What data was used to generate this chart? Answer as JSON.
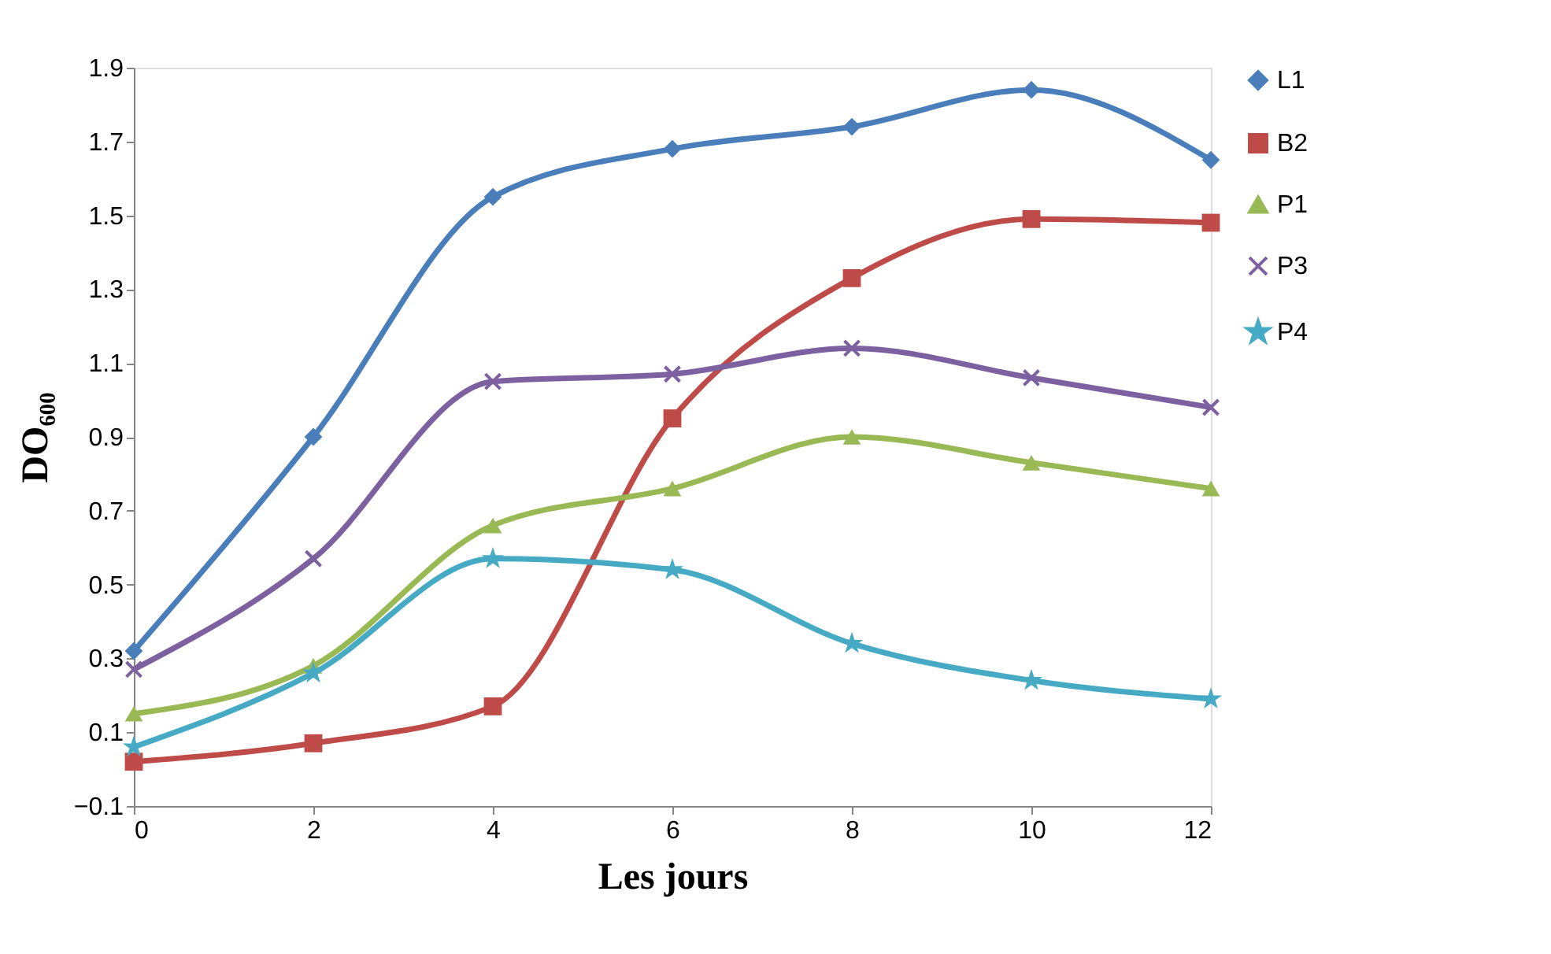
{
  "chart_data": {
    "type": "line",
    "xlabel": "Les jours",
    "ylabel": "DO₆₀₀",
    "x": [
      0,
      2,
      4,
      6,
      8,
      10,
      12
    ],
    "xlim": [
      0,
      12
    ],
    "xticks": [
      0,
      2,
      4,
      6,
      8,
      10,
      12
    ],
    "ylim": [
      -0.1,
      1.9
    ],
    "yticks": [
      -0.1,
      0.1,
      0.3,
      0.5,
      0.7,
      0.9,
      1.1,
      1.3,
      1.5,
      1.7,
      1.9
    ],
    "grid": false,
    "legend": "right",
    "line_style": "solid",
    "series": [
      {
        "name": "L1",
        "color": "#4a7ebb",
        "marker": "diamond",
        "values": [
          0.32,
          0.9,
          1.55,
          1.68,
          1.74,
          1.84,
          1.65
        ]
      },
      {
        "name": "B2",
        "color": "#be4b48",
        "marker": "square",
        "values": [
          0.02,
          0.07,
          0.17,
          0.95,
          1.33,
          1.49,
          1.48
        ]
      },
      {
        "name": "P1",
        "color": "#98b954",
        "marker": "triangle",
        "values": [
          0.15,
          0.28,
          0.66,
          0.76,
          0.9,
          0.83,
          0.76
        ]
      },
      {
        "name": "P3",
        "color": "#7d60a0",
        "marker": "cross",
        "values": [
          0.27,
          0.57,
          1.05,
          1.07,
          1.14,
          1.06,
          0.98
        ]
      },
      {
        "name": "P4",
        "color": "#46aac5",
        "marker": "star",
        "values": [
          0.06,
          0.26,
          0.57,
          0.54,
          0.34,
          0.24,
          0.19
        ]
      }
    ]
  }
}
